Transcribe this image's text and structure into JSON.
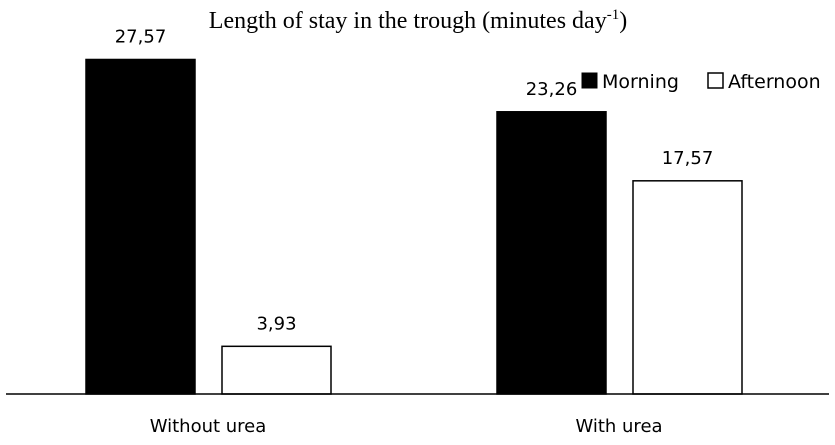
{
  "chart_data": {
    "type": "bar",
    "title": "Length of stay in the trough (minutes day",
    "title_superscript": "-1",
    "title_suffix": ")",
    "categories": [
      "Without urea",
      "With urea"
    ],
    "series": [
      {
        "name": "Morning",
        "values": [
          27.57,
          23.26
        ],
        "labels": [
          "27,57",
          "23,26"
        ],
        "fill": "#000000"
      },
      {
        "name": "Afternoon",
        "values": [
          3.93,
          17.57
        ],
        "labels": [
          "3,93",
          "17,57"
        ],
        "fill": "#ffffff"
      }
    ],
    "ylim": [
      0,
      30
    ],
    "grid": false,
    "legend_position": "top-right",
    "xlabel": "",
    "ylabel": ""
  }
}
